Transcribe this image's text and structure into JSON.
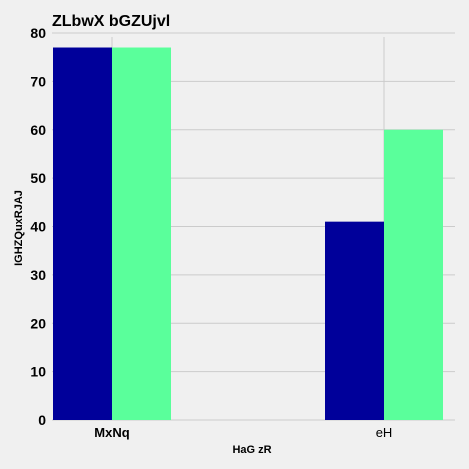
{
  "chart_data": {
    "type": "bar",
    "title": "ZLbwX bGZUjvl",
    "xlabel": "HaG zR",
    "ylabel": "IGHZQuxRJAJ",
    "categories": [
      "MxNq",
      "eH"
    ],
    "series": [
      {
        "values": [
          77,
          41
        ],
        "color": "#00009a"
      },
      {
        "values": [
          77,
          60
        ],
        "color": "#5aff9b"
      }
    ],
    "ylim": [
      0,
      80
    ],
    "yticks": [
      0,
      10,
      20,
      30,
      40,
      50,
      60,
      70,
      80
    ],
    "grid": true,
    "background": "#f0f0f0",
    "grid_color": "#cbcbcb"
  }
}
